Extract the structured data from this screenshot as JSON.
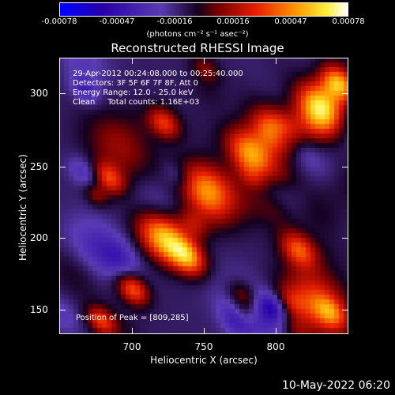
{
  "colorbar": {
    "ticks": [
      "-0.00078",
      "-0.00047",
      "-0.00016",
      "0.00016",
      "0.00047",
      "0.00078"
    ],
    "units": "(photons cm⁻² s⁻¹ asec⁻²)"
  },
  "title": "Reconstructed RHESSI Image",
  "info": {
    "line1": "29-Apr-2012 00:24:08.000 to 00:25:40.000",
    "line2": "Detectors: 3F 5F 6F 7F 8F, Att 0",
    "line3": "Energy Range: 12.0 - 25.0 keV",
    "line4": "Clean     Total counts: 1.16E+03"
  },
  "peak": "Position of Peak = [809,285]",
  "axes": {
    "xlabel": "Heliocentric X (arcsec)",
    "ylabel": "Heliocentric Y (arcsec)",
    "xticks": [
      "700",
      "750",
      "800"
    ],
    "yticks": [
      "300",
      "250",
      "200",
      "150"
    ],
    "xrange": [
      655,
      840
    ],
    "yrange": [
      133,
      320
    ]
  },
  "timestamp": "10-May-2022 06:20",
  "colors": {
    "low": "#0000ff",
    "mid": "#ff0000",
    "high": "#ffffff"
  }
}
